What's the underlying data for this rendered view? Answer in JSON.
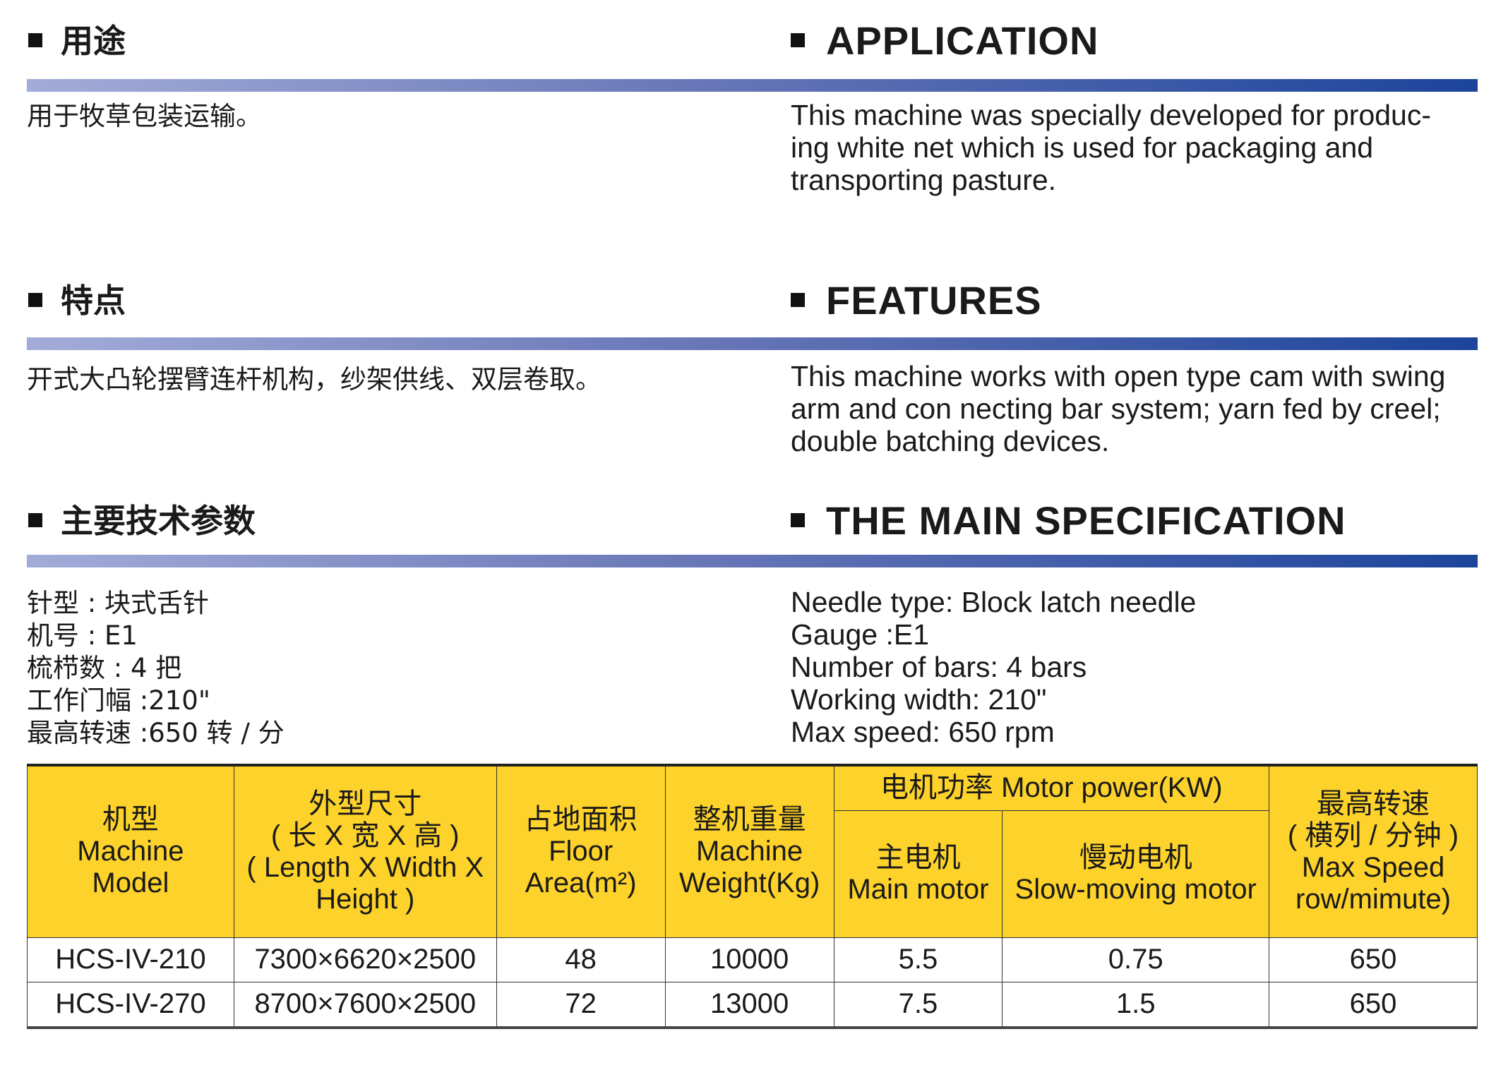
{
  "sections": [
    {
      "heading_cn": "用途",
      "heading_en": "APPLICATION",
      "body_cn": [
        "用于牧草包装运输。"
      ],
      "body_en": [
        "This machine was specially developed for produc-",
        "ing white net which is used for packaging and",
        "transporting pasture."
      ]
    },
    {
      "heading_cn": "特点",
      "heading_en": "FEATURES",
      "body_cn": [
        "开式大凸轮摆臂连杆机构，纱架供线、双层卷取。"
      ],
      "body_en": [
        "This machine works with open type cam with swing",
        "arm and con necting bar system; yarn fed by creel;",
        "double batching devices."
      ]
    },
    {
      "heading_cn": "主要技术参数",
      "heading_en": "THE MAIN SPECIFICATION",
      "body_cn": [
        "针型 : 块式舌针",
        "机号 : E1",
        "梳栉数 : 4 把",
        "工作门幅 :210\"",
        "最高转速 :650 转 / 分"
      ],
      "body_en": [
        "Needle type: Block latch needle",
        "Gauge :E1",
        "Number of bars: 4 bars",
        "Working width: 210\"",
        "Max speed: 650 rpm"
      ]
    }
  ],
  "colors": {
    "header_fill": "#fdd22a",
    "bar_start": "#a3acd8",
    "bar_end": "#1c449b"
  },
  "table": {
    "headers": {
      "model": [
        "机型",
        "Machine",
        "Model"
      ],
      "dimensions": [
        "外型尺寸",
        "( 长 X 宽 X 高 )",
        "( Length X Width X",
        "Height )"
      ],
      "floor": [
        "占地面积",
        "Floor",
        "Area(m²)"
      ],
      "weight": [
        "整机重量",
        "Machine",
        "Weight(Kg)"
      ],
      "motor_group": "电机功率 Motor power(KW)",
      "main_motor": [
        "主电机",
        "Main motor"
      ],
      "slow_motor": [
        "慢动电机",
        "Slow-moving motor"
      ],
      "speed": [
        "最高转速",
        "( 横列 / 分钟 )",
        "Max Speed",
        "row/mimute)"
      ]
    },
    "rows": [
      [
        "HCS-IV-210",
        "7300×6620×2500",
        "48",
        "10000",
        "5.5",
        "0.75",
        "650"
      ],
      [
        "HCS-IV-270",
        "8700×7600×2500",
        "72",
        "13000",
        "7.5",
        "1.5",
        "650"
      ]
    ]
  }
}
